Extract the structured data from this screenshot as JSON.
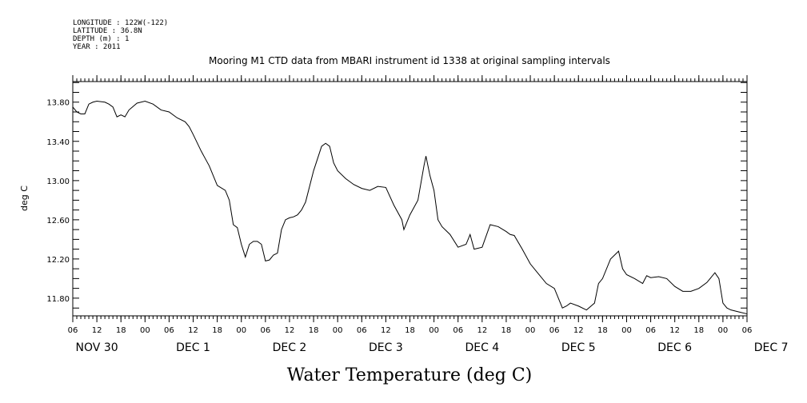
{
  "header": {
    "meta_lines": [
      "LONGITUDE : 122W(-122)",
      "LATITUDE : 36.8N",
      "DEPTH (m) : 1",
      "YEAR : 2011"
    ],
    "title": "Mooring M1 CTD data from MBARI instrument id 1338 at original sampling intervals"
  },
  "chart_data": {
    "type": "line",
    "title": "Mooring M1 CTD data from MBARI instrument id 1338 at original sampling intervals",
    "xlabel": "Water Temperature (deg C)",
    "ylabel": "deg C",
    "xlim": [
      "2011-11-30 06:00",
      "2011-12-07 06:00"
    ],
    "ylim": [
      11.62,
      14.01
    ],
    "y_ticks": [
      "13.80",
      "13.40",
      "13.00",
      "12.60",
      "12.20",
      "11.80"
    ],
    "x_hour_ticks": [
      "06",
      "12",
      "18",
      "00",
      "06",
      "12",
      "18",
      "00",
      "06",
      "12",
      "18",
      "00",
      "06",
      "12",
      "18",
      "00",
      "06",
      "12",
      "18",
      "00",
      "06",
      "12",
      "18",
      "00",
      "06",
      "12",
      "18",
      "00",
      "06"
    ],
    "x_day_labels": [
      "NOV 30",
      "DEC  1",
      "DEC  2",
      "DEC  3",
      "DEC  4",
      "DEC  5",
      "DEC  6",
      "DEC  7"
    ],
    "grid": false,
    "series": [
      {
        "x": [
          "2011-11-30 06:00",
          "2011-11-30 07:00",
          "2011-11-30 08:00",
          "2011-11-30 09:00",
          "2011-11-30 10:00",
          "2011-11-30 11:00",
          "2011-11-30 12:00",
          "2011-11-30 14:00",
          "2011-11-30 15:00",
          "2011-11-30 16:00",
          "2011-11-30 17:00",
          "2011-11-30 18:00",
          "2011-11-30 19:00",
          "2011-11-30 20:00",
          "2011-11-30 22:00",
          "2011-12-01 00:00",
          "2011-12-01 02:00",
          "2011-12-01 04:00",
          "2011-12-01 06:00",
          "2011-12-01 08:00",
          "2011-12-01 10:00",
          "2011-12-01 11:00",
          "2011-12-01 12:00",
          "2011-12-01 14:00",
          "2011-12-01 16:00",
          "2011-12-01 18:00",
          "2011-12-01 20:00",
          "2011-12-01 21:00",
          "2011-12-01 22:00",
          "2011-12-01 23:00",
          "2011-12-02 00:00",
          "2011-12-02 01:00",
          "2011-12-02 02:00",
          "2011-12-02 03:00",
          "2011-12-02 04:00",
          "2011-12-02 05:00",
          "2011-12-02 06:00",
          "2011-12-02 07:00",
          "2011-12-02 08:00",
          "2011-12-02 09:00",
          "2011-12-02 10:00",
          "2011-12-02 11:00",
          "2011-12-02 12:00",
          "2011-12-02 13:00",
          "2011-12-02 14:00",
          "2011-12-02 15:00",
          "2011-12-02 16:00",
          "2011-12-02 18:00",
          "2011-12-02 20:00",
          "2011-12-02 21:00",
          "2011-12-02 22:00",
          "2011-12-02 23:00",
          "2011-12-03 00:00",
          "2011-12-03 02:00",
          "2011-12-03 04:00",
          "2011-12-03 06:00",
          "2011-12-03 08:00",
          "2011-12-03 10:00",
          "2011-12-03 12:00",
          "2011-12-03 14:00",
          "2011-12-03 16:00",
          "2011-12-03 16:30",
          "2011-12-03 18:00",
          "2011-12-03 20:00",
          "2011-12-03 21:30",
          "2011-12-03 22:00",
          "2011-12-03 23:00",
          "2011-12-04 00:00",
          "2011-12-04 01:00",
          "2011-12-04 02:00",
          "2011-12-04 04:00",
          "2011-12-04 06:00",
          "2011-12-04 08:00",
          "2011-12-04 09:00",
          "2011-12-04 10:00",
          "2011-12-04 12:00",
          "2011-12-04 14:00",
          "2011-12-04 16:00",
          "2011-12-04 18:00",
          "2011-12-04 19:00",
          "2011-12-04 20:00",
          "2011-12-04 22:00",
          "2011-12-05 00:00",
          "2011-12-05 02:00",
          "2011-12-05 04:00",
          "2011-12-05 06:00",
          "2011-12-05 08:00",
          "2011-12-05 09:00",
          "2011-12-05 10:00",
          "2011-12-05 12:00",
          "2011-12-05 14:00",
          "2011-12-05 16:00",
          "2011-12-05 17:00",
          "2011-12-05 18:00",
          "2011-12-05 20:00",
          "2011-12-05 22:00",
          "2011-12-05 23:00",
          "2011-12-06 00:00",
          "2011-12-06 02:00",
          "2011-12-06 04:00",
          "2011-12-06 05:00",
          "2011-12-06 06:00",
          "2011-12-06 08:00",
          "2011-12-06 10:00",
          "2011-12-06 12:00",
          "2011-12-06 14:00",
          "2011-12-06 16:00",
          "2011-12-06 18:00",
          "2011-12-06 20:00",
          "2011-12-06 22:00",
          "2011-12-06 23:00",
          "2011-12-07 00:00",
          "2011-12-07 01:00",
          "2011-12-07 02:00",
          "2011-12-07 04:00",
          "2011-12-07 06:00"
        ],
        "values": [
          13.75,
          13.7,
          13.68,
          13.68,
          13.78,
          13.8,
          13.81,
          13.8,
          13.78,
          13.75,
          13.65,
          13.67,
          13.65,
          13.72,
          13.79,
          13.81,
          13.78,
          13.72,
          13.7,
          13.64,
          13.6,
          13.55,
          13.47,
          13.3,
          13.15,
          12.95,
          12.9,
          12.8,
          12.55,
          12.52,
          12.35,
          12.22,
          12.35,
          12.38,
          12.38,
          12.35,
          12.18,
          12.19,
          12.24,
          12.26,
          12.5,
          12.6,
          12.62,
          12.63,
          12.65,
          12.7,
          12.78,
          13.1,
          13.35,
          13.38,
          13.35,
          13.18,
          13.1,
          13.02,
          12.96,
          12.92,
          12.9,
          12.94,
          12.93,
          12.75,
          12.6,
          12.5,
          12.65,
          12.8,
          13.15,
          13.25,
          13.05,
          12.9,
          12.6,
          12.53,
          12.45,
          12.32,
          12.35,
          12.45,
          12.3,
          12.32,
          12.55,
          12.53,
          12.48,
          12.45,
          12.44,
          12.3,
          12.15,
          12.05,
          11.95,
          11.9,
          11.7,
          11.72,
          11.75,
          11.72,
          11.68,
          11.75,
          11.95,
          12.0,
          12.2,
          12.28,
          12.1,
          12.04,
          12.0,
          11.95,
          12.03,
          12.01,
          12.02,
          12.0,
          11.92,
          11.87,
          11.87,
          11.9,
          11.96,
          12.06,
          12.0,
          11.75,
          11.7,
          11.68,
          11.66,
          11.64
        ]
      }
    ]
  }
}
